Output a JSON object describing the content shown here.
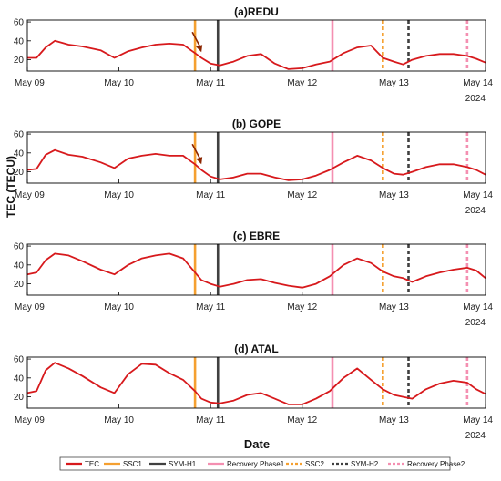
{
  "shared": {
    "y_label": "TEC (TECU)",
    "x_label": "Date",
    "year_label": "2024",
    "x_ticks": [
      {
        "x": 0,
        "label": "May 09"
      },
      {
        "x": 1,
        "label": "May 10"
      },
      {
        "x": 2,
        "label": "May 11"
      },
      {
        "x": 3,
        "label": "May 12"
      },
      {
        "x": 4,
        "label": "May 13"
      },
      {
        "x": 5,
        "label": "May 14"
      }
    ],
    "xlim": [
      0,
      5
    ],
    "events": [
      {
        "name": "SSC1",
        "x": 1.83,
        "color": "#f5a030",
        "style": "solid"
      },
      {
        "name": "SYM-H1",
        "x": 2.08,
        "color": "#404040",
        "style": "solid"
      },
      {
        "name": "Recovery Phase1",
        "x": 3.33,
        "color": "#f48fb1",
        "style": "solid"
      },
      {
        "name": "SSC2",
        "x": 3.88,
        "color": "#f5a030",
        "style": "dashed"
      },
      {
        "name": "SYM-H2",
        "x": 4.16,
        "color": "#404040",
        "style": "dashed"
      },
      {
        "name": "Recovery Phase2",
        "x": 4.8,
        "color": "#f48fb1",
        "style": "dashed"
      }
    ],
    "legend": [
      {
        "label": "TEC",
        "color": "#d7191c",
        "style": "solid"
      },
      {
        "label": "SSC1",
        "color": "#f5a030",
        "style": "solid"
      },
      {
        "label": "SYM-H1",
        "color": "#404040",
        "style": "solid"
      },
      {
        "label": "Recovery Phase1",
        "color": "#f48fb1",
        "style": "solid"
      },
      {
        "label": "SSC2",
        "color": "#f5a030",
        "style": "dashed"
      },
      {
        "label": "SYM-H2",
        "color": "#404040",
        "style": "dashed"
      },
      {
        "label": "Recovery Phase2",
        "color": "#f48fb1",
        "style": "dashed"
      }
    ]
  },
  "chart_data": [
    {
      "type": "line",
      "title": "(a)REDU",
      "series_color": "#d7191c",
      "ylim": [
        8,
        62
      ],
      "y_ticks": [
        20,
        40,
        60
      ],
      "annotation": {
        "type": "arrow",
        "x": 1.9,
        "y": 28,
        "color": "#8b2500"
      },
      "x": [
        0,
        0.1,
        0.2,
        0.3,
        0.45,
        0.6,
        0.8,
        0.95,
        1.1,
        1.25,
        1.4,
        1.55,
        1.7,
        1.83,
        1.9,
        2.0,
        2.1,
        2.25,
        2.4,
        2.55,
        2.7,
        2.85,
        3.0,
        3.15,
        3.3,
        3.45,
        3.6,
        3.75,
        3.88,
        4.0,
        4.1,
        4.2,
        4.35,
        4.5,
        4.65,
        4.8,
        4.9,
        5.0
      ],
      "y": [
        22,
        22,
        33,
        40,
        36,
        34,
        30,
        22,
        29,
        33,
        36,
        37,
        36,
        27,
        22,
        16,
        14,
        18,
        24,
        26,
        16,
        10,
        11,
        15,
        18,
        27,
        33,
        35,
        22,
        18,
        15,
        20,
        24,
        26,
        26,
        24,
        21,
        17
      ]
    },
    {
      "type": "line",
      "title": "(b) GOPE",
      "series_color": "#d7191c",
      "ylim": [
        8,
        62
      ],
      "y_ticks": [
        20,
        40,
        60
      ],
      "annotation": {
        "type": "arrow",
        "x": 1.9,
        "y": 28,
        "color": "#8b2500"
      },
      "x": [
        0,
        0.1,
        0.2,
        0.3,
        0.45,
        0.6,
        0.8,
        0.95,
        1.1,
        1.25,
        1.4,
        1.55,
        1.7,
        1.83,
        1.9,
        2.0,
        2.1,
        2.25,
        2.4,
        2.55,
        2.7,
        2.85,
        3.0,
        3.15,
        3.3,
        3.45,
        3.6,
        3.75,
        3.88,
        4.0,
        4.1,
        4.2,
        4.35,
        4.5,
        4.65,
        4.8,
        4.9,
        5.0
      ],
      "y": [
        22,
        23,
        38,
        43,
        38,
        36,
        30,
        24,
        34,
        37,
        39,
        37,
        37,
        28,
        22,
        15,
        12,
        14,
        18,
        18,
        14,
        11,
        12,
        16,
        22,
        30,
        37,
        32,
        24,
        18,
        17,
        20,
        25,
        28,
        28,
        25,
        22,
        17
      ]
    },
    {
      "type": "line",
      "title": "(c) EBRE",
      "series_color": "#d7191c",
      "ylim": [
        8,
        62
      ],
      "y_ticks": [
        20,
        40,
        60
      ],
      "x": [
        0,
        0.1,
        0.2,
        0.3,
        0.45,
        0.6,
        0.8,
        0.95,
        1.1,
        1.25,
        1.4,
        1.55,
        1.7,
        1.83,
        1.9,
        2.0,
        2.1,
        2.25,
        2.4,
        2.55,
        2.7,
        2.85,
        3.0,
        3.15,
        3.3,
        3.45,
        3.6,
        3.75,
        3.88,
        4.0,
        4.1,
        4.2,
        4.35,
        4.5,
        4.65,
        4.8,
        4.9,
        5.0
      ],
      "y": [
        30,
        32,
        45,
        52,
        50,
        44,
        35,
        30,
        40,
        47,
        50,
        52,
        47,
        32,
        24,
        20,
        17,
        20,
        24,
        25,
        21,
        18,
        16,
        20,
        28,
        40,
        47,
        42,
        33,
        28,
        26,
        22,
        28,
        32,
        35,
        37,
        34,
        26
      ]
    },
    {
      "type": "line",
      "title": "(d) ATAL",
      "series_color": "#d7191c",
      "ylim": [
        8,
        62
      ],
      "y_ticks": [
        20,
        40,
        60
      ],
      "x": [
        0,
        0.1,
        0.2,
        0.3,
        0.45,
        0.6,
        0.8,
        0.95,
        1.1,
        1.25,
        1.4,
        1.55,
        1.7,
        1.83,
        1.9,
        2.0,
        2.1,
        2.25,
        2.4,
        2.55,
        2.7,
        2.85,
        3.0,
        3.15,
        3.3,
        3.45,
        3.6,
        3.75,
        3.88,
        4.0,
        4.1,
        4.2,
        4.35,
        4.5,
        4.65,
        4.8,
        4.9,
        5.0
      ],
      "y": [
        24,
        26,
        48,
        56,
        50,
        42,
        30,
        24,
        44,
        55,
        54,
        45,
        38,
        26,
        18,
        14,
        13,
        16,
        22,
        24,
        18,
        12,
        12,
        18,
        26,
        40,
        50,
        38,
        28,
        22,
        20,
        18,
        28,
        34,
        37,
        35,
        28,
        23
      ]
    }
  ]
}
